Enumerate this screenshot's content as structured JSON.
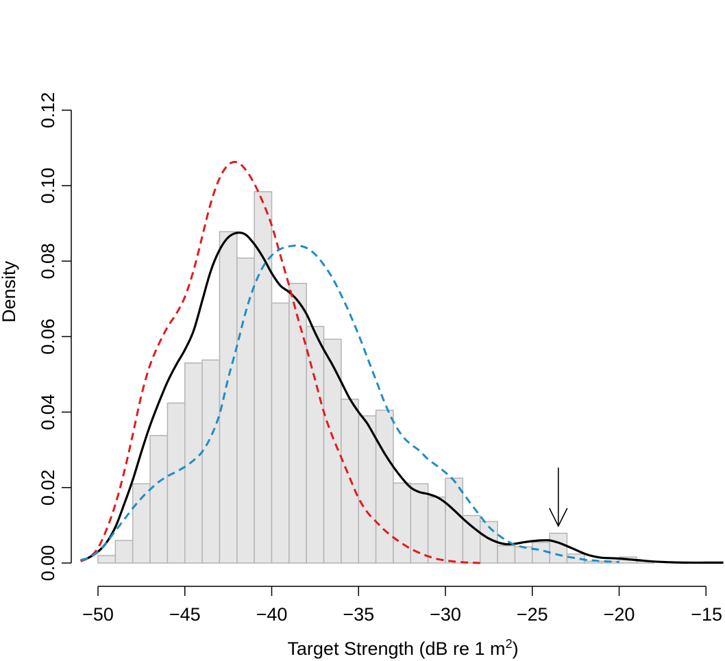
{
  "chart_data": {
    "type": "bar",
    "title": "",
    "xlabel": "Target Strength (dB re 1 m",
    "xlabel_superscript": "2",
    "xlabel_suffix": ")",
    "ylabel": "Density",
    "xlim": [
      -51.5,
      -14
    ],
    "ylim": [
      0,
      0.12
    ],
    "x_ticks": [
      -50,
      -45,
      -40,
      -35,
      -30,
      -25,
      -20,
      -15
    ],
    "x_tick_labels": [
      "−50",
      "−45",
      "−40",
      "−35",
      "−30",
      "−25",
      "−20",
      "−15"
    ],
    "y_ticks": [
      0,
      0.02,
      0.04,
      0.06,
      0.08,
      0.1,
      0.12
    ],
    "y_tick_labels": [
      "0.00",
      "0.02",
      "0.04",
      "0.06",
      "0.08",
      "0.10",
      "0.12"
    ],
    "grid": false,
    "colors": {
      "bar_fill": "#e6e6e6",
      "bar_stroke": "#b4b4b4",
      "density_all": "#000000",
      "density_red": "#e41a1c",
      "density_blue": "#1f8dc8"
    },
    "histogram": {
      "bin_width": 1,
      "bins": [
        {
          "x0": -50,
          "density": 0.002
        },
        {
          "x0": -49,
          "density": 0.006
        },
        {
          "x0": -48,
          "density": 0.021
        },
        {
          "x0": -47,
          "density": 0.0338
        },
        {
          "x0": -46,
          "density": 0.0424
        },
        {
          "x0": -45,
          "density": 0.053
        },
        {
          "x0": -44,
          "density": 0.0538
        },
        {
          "x0": -43,
          "density": 0.0878
        },
        {
          "x0": -42,
          "density": 0.0808
        },
        {
          "x0": -41,
          "density": 0.0984
        },
        {
          "x0": -40,
          "density": 0.0689
        },
        {
          "x0": -39,
          "density": 0.0741
        },
        {
          "x0": -38,
          "density": 0.0627
        },
        {
          "x0": -37,
          "density": 0.0593
        },
        {
          "x0": -36,
          "density": 0.0434
        },
        {
          "x0": -35,
          "density": 0.039
        },
        {
          "x0": -34,
          "density": 0.0405
        },
        {
          "x0": -33,
          "density": 0.0212
        },
        {
          "x0": -32,
          "density": 0.021
        },
        {
          "x0": -31,
          "density": 0.0175
        },
        {
          "x0": -30,
          "density": 0.0225
        },
        {
          "x0": -29,
          "density": 0.0126
        },
        {
          "x0": -28,
          "density": 0.011
        },
        {
          "x0": -27,
          "density": 0.0046
        },
        {
          "x0": -26,
          "density": 0.0043
        },
        {
          "x0": -25,
          "density": 0.0055
        },
        {
          "x0": -24,
          "density": 0.0079
        },
        {
          "x0": -23,
          "density": 0.0024
        },
        {
          "x0": -22,
          "density": 0.0005
        },
        {
          "x0": -21,
          "density": 0.0005
        },
        {
          "x0": -20,
          "density": 0.0016
        },
        {
          "x0": -19,
          "density": 0.0005
        }
      ]
    },
    "series": [
      {
        "style": "solid",
        "color": "#000000",
        "x": [
          -51,
          -50.5,
          -50,
          -49.5,
          -49,
          -48.5,
          -48,
          -47.5,
          -47,
          -46.5,
          -46,
          -45.5,
          -45,
          -44.5,
          -44,
          -43.5,
          -43,
          -42.5,
          -42,
          -41.5,
          -41,
          -40.5,
          -40,
          -39.5,
          -39,
          -38.5,
          -38,
          -37.5,
          -37,
          -36.5,
          -36,
          -35.5,
          -35,
          -34.5,
          -34,
          -33.5,
          -33,
          -32.5,
          -32,
          -31.5,
          -31,
          -30.5,
          -30,
          -29.5,
          -29,
          -28.5,
          -28,
          -27.5,
          -27,
          -26.5,
          -26,
          -25.5,
          -25,
          -24.5,
          -24,
          -23.5,
          -23,
          -22.5,
          -22,
          -21.5,
          -21,
          -20.5,
          -20,
          -19.5,
          -19,
          -18,
          -17,
          -16,
          -15,
          -14
        ],
        "y": [
          0.0005,
          0.0015,
          0.003,
          0.0055,
          0.0095,
          0.0155,
          0.022,
          0.0295,
          0.0365,
          0.0425,
          0.048,
          0.0525,
          0.0565,
          0.0615,
          0.0695,
          0.0775,
          0.083,
          0.0863,
          0.0875,
          0.087,
          0.0845,
          0.081,
          0.0768,
          0.0735,
          0.0718,
          0.0695,
          0.066,
          0.061,
          0.0565,
          0.0525,
          0.048,
          0.0435,
          0.04,
          0.037,
          0.033,
          0.029,
          0.0255,
          0.0225,
          0.02,
          0.0188,
          0.0183,
          0.0175,
          0.016,
          0.014,
          0.0118,
          0.0098,
          0.008,
          0.0065,
          0.0055,
          0.005,
          0.0051,
          0.0055,
          0.0058,
          0.006,
          0.006,
          0.0054,
          0.0045,
          0.0035,
          0.0025,
          0.0018,
          0.0014,
          0.0013,
          0.0012,
          0.001,
          0.0008,
          0.0004,
          0.0002,
          0.0001,
          0.0001,
          0.0001
        ]
      },
      {
        "style": "dashed",
        "color": "#e41a1c",
        "x": [
          -51,
          -50.5,
          -50,
          -49.5,
          -49,
          -48.5,
          -48,
          -47.5,
          -47,
          -46.5,
          -46,
          -45.5,
          -45,
          -44.5,
          -44,
          -43.5,
          -43,
          -42.5,
          -42,
          -41.5,
          -41,
          -40.5,
          -40,
          -39.5,
          -39,
          -38.5,
          -38,
          -37.5,
          -37,
          -36.5,
          -36,
          -35.5,
          -35,
          -34.5,
          -34,
          -33.5,
          -33,
          -32.5,
          -32,
          -31.5,
          -31,
          -30.5,
          -30,
          -29.5,
          -29,
          -28.5,
          -28
        ],
        "y": [
          0.0005,
          0.0015,
          0.004,
          0.009,
          0.0155,
          0.024,
          0.034,
          0.0445,
          0.0525,
          0.058,
          0.0625,
          0.066,
          0.0705,
          0.0775,
          0.0865,
          0.0955,
          0.102,
          0.1055,
          0.1062,
          0.1042,
          0.1005,
          0.0955,
          0.0895,
          0.0815,
          0.0735,
          0.065,
          0.057,
          0.0485,
          0.04,
          0.0335,
          0.028,
          0.0225,
          0.0172,
          0.0135,
          0.011,
          0.0087,
          0.0068,
          0.0052,
          0.0038,
          0.0027,
          0.0018,
          0.0011,
          0.0007,
          0.0004,
          0.0002,
          0.0001,
          0.0
        ]
      },
      {
        "style": "dashed",
        "color": "#1f8dc8",
        "x": [
          -51,
          -50.5,
          -50,
          -49.5,
          -49,
          -48.5,
          -48,
          -47.5,
          -47,
          -46.5,
          -46,
          -45.5,
          -45,
          -44.5,
          -44,
          -43.5,
          -43,
          -42.5,
          -42,
          -41.5,
          -41,
          -40.5,
          -40,
          -39.5,
          -39,
          -38.5,
          -38,
          -37.5,
          -37,
          -36.5,
          -36,
          -35.5,
          -35,
          -34.5,
          -34,
          -33.5,
          -33,
          -32.5,
          -32,
          -31.5,
          -31,
          -30.5,
          -30,
          -29.5,
          -29,
          -28.5,
          -28,
          -27.5,
          -27,
          -26.5,
          -26,
          -25.5,
          -25,
          -24.5,
          -24,
          -23.5,
          -23,
          -22.5,
          -22,
          -21.5,
          -21,
          -20.5,
          -20
        ],
        "y": [
          0.0008,
          0.0015,
          0.003,
          0.0055,
          0.0085,
          0.0115,
          0.0145,
          0.0172,
          0.0195,
          0.0215,
          0.023,
          0.0242,
          0.0255,
          0.0272,
          0.0295,
          0.0335,
          0.0395,
          0.049,
          0.0575,
          0.0665,
          0.0735,
          0.0785,
          0.0815,
          0.0832,
          0.0839,
          0.0841,
          0.0835,
          0.0818,
          0.079,
          0.0755,
          0.071,
          0.066,
          0.0605,
          0.0545,
          0.0485,
          0.0425,
          0.0375,
          0.0338,
          0.0315,
          0.0298,
          0.0275,
          0.0258,
          0.024,
          0.0218,
          0.0186,
          0.0155,
          0.0125,
          0.0096,
          0.0076,
          0.006,
          0.0048,
          0.0042,
          0.0038,
          0.0034,
          0.0028,
          0.0022,
          0.0017,
          0.0013,
          0.0009,
          0.0007,
          0.0005,
          0.0004,
          0.0003
        ]
      }
    ],
    "annotation": {
      "type": "arrow",
      "x": -23.5,
      "y_from": 0.0253,
      "y_to": 0.0098
    }
  }
}
